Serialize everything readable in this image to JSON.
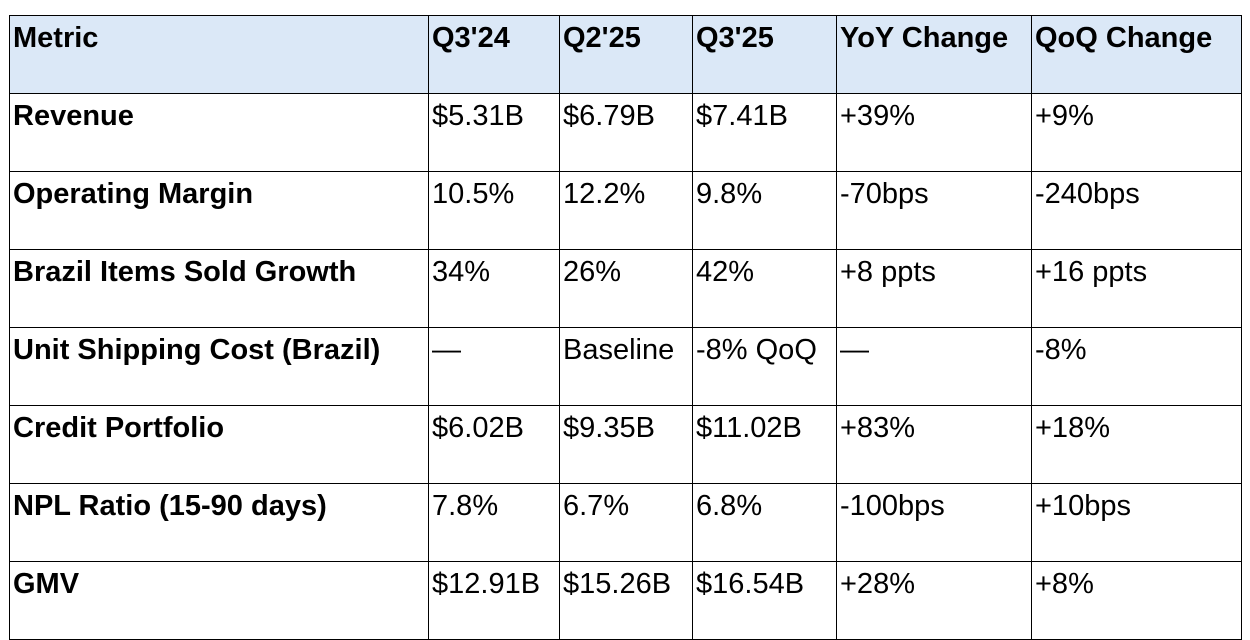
{
  "table": {
    "headers": [
      "Metric",
      "Q3'24",
      "Q2'25",
      "Q3'25",
      "YoY Change",
      "QoQ Change"
    ],
    "rows": [
      [
        "Revenue",
        "$5.31B",
        "$6.79B",
        "$7.41B",
        "+39%",
        "+9%"
      ],
      [
        "Operating Margin",
        "10.5%",
        "12.2%",
        "9.8%",
        "-70bps",
        "-240bps"
      ],
      [
        "Brazil Items Sold Growth",
        "34%",
        "26%",
        "42%",
        "+8 ppts",
        "+16 ppts"
      ],
      [
        "Unit Shipping Cost (Brazil)",
        "—",
        "Baseline",
        "-8% QoQ",
        "—",
        "-8%"
      ],
      [
        "Credit Portfolio",
        "$6.02B",
        "$9.35B",
        "$11.02B",
        "+83%",
        "+18%"
      ],
      [
        "NPL Ratio (15-90 days)",
        "7.8%",
        "6.7%",
        "6.8%",
        "-100bps",
        "+10bps"
      ],
      [
        "GMV",
        "$12.91B",
        "$15.26B",
        "$16.54B",
        "+28%",
        "+8%"
      ]
    ]
  },
  "colors": {
    "header_background": "#dbe8f7",
    "border": "#000000"
  }
}
